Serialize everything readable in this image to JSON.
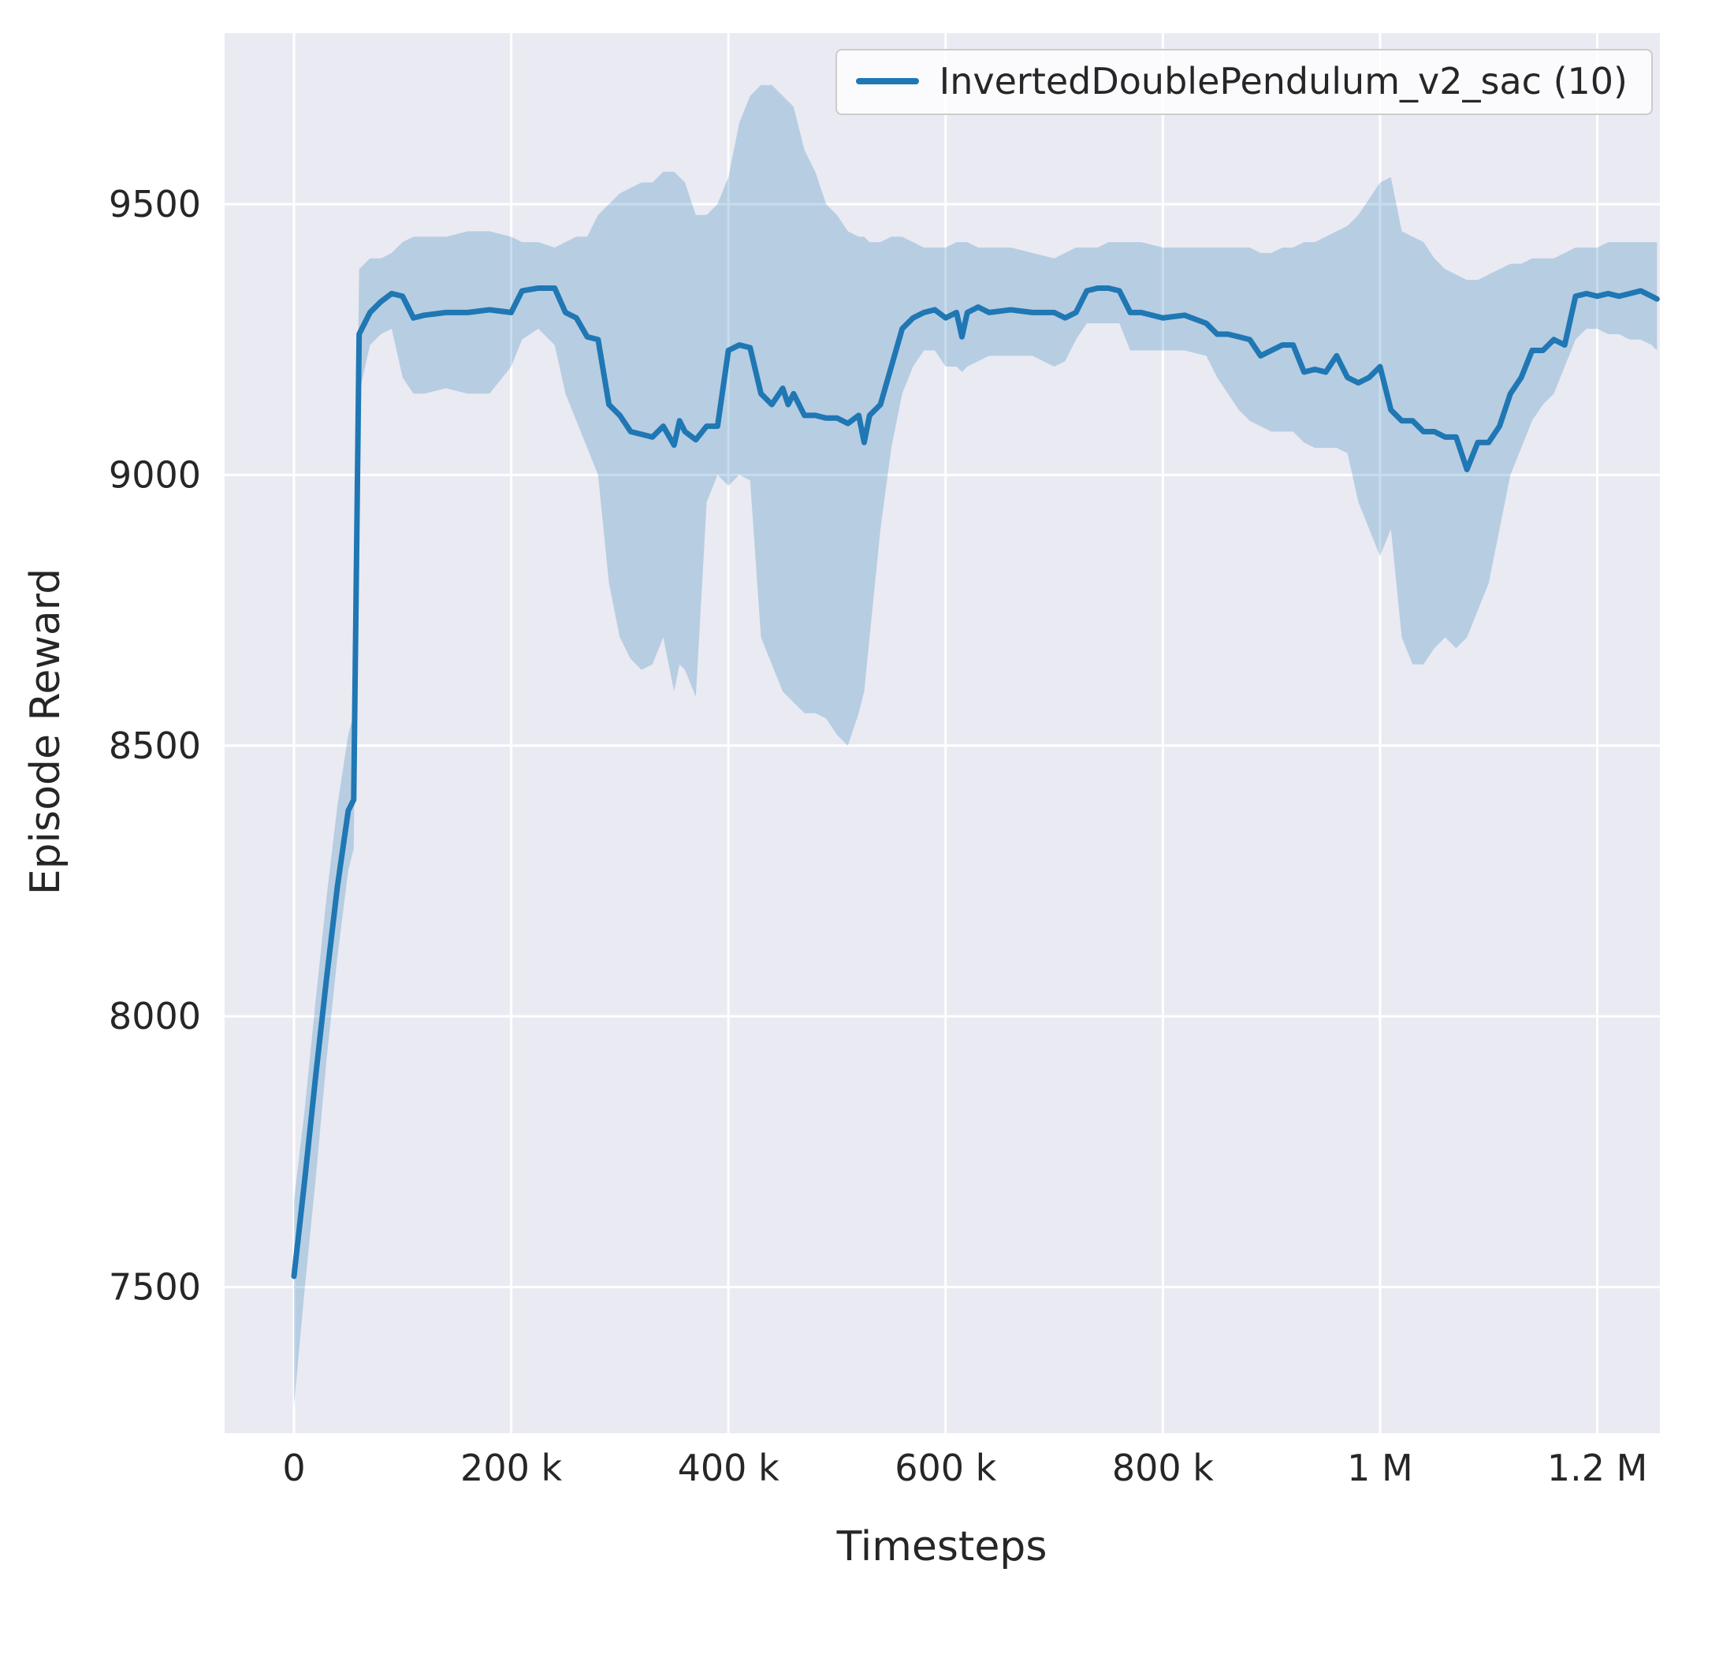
{
  "chart_data": {
    "type": "line",
    "title": "",
    "xlabel": "Timesteps",
    "ylabel": "Episode Reward",
    "grid": true,
    "legend_position": "upper right",
    "background": "#eaeaf2",
    "grid_color": "#ffffff",
    "line_color": "#1f77b4",
    "band_opacity": 0.25,
    "text_color": "#262626",
    "xlim": [
      -63850,
      1257650
    ],
    "ylim": [
      7230,
      9816
    ],
    "xticks": [
      {
        "value": 0,
        "label": "0"
      },
      {
        "value": 200000,
        "label": "200 k"
      },
      {
        "value": 400000,
        "label": "400 k"
      },
      {
        "value": 600000,
        "label": "600 k"
      },
      {
        "value": 800000,
        "label": "800 k"
      },
      {
        "value": 1000000,
        "label": "1 M"
      },
      {
        "value": 1200000,
        "label": "1.2 M"
      }
    ],
    "yticks": [
      {
        "value": 7500,
        "label": "7500"
      },
      {
        "value": 8000,
        "label": "8000"
      },
      {
        "value": 8500,
        "label": "8500"
      },
      {
        "value": 9000,
        "label": "9000"
      },
      {
        "value": 9500,
        "label": "9500"
      }
    ],
    "series": [
      {
        "name": "InvertedDoublePendulum_v2_sac (10)",
        "x": [
          0,
          10000,
          20000,
          30000,
          40000,
          50000,
          55000,
          60000,
          70000,
          80000,
          90000,
          100000,
          110000,
          120000,
          140000,
          160000,
          180000,
          200000,
          210000,
          225000,
          240000,
          250000,
          260000,
          270000,
          280000,
          290000,
          300000,
          310000,
          320000,
          330000,
          340000,
          350000,
          355000,
          360000,
          370000,
          380000,
          390000,
          400000,
          410000,
          420000,
          430000,
          440000,
          450000,
          455000,
          460000,
          470000,
          480000,
          490000,
          500000,
          510000,
          520000,
          525000,
          530000,
          540000,
          550000,
          560000,
          570000,
          580000,
          590000,
          600000,
          610000,
          615000,
          620000,
          630000,
          640000,
          660000,
          680000,
          700000,
          710000,
          720000,
          730000,
          740000,
          750000,
          760000,
          770000,
          780000,
          800000,
          820000,
          840000,
          850000,
          860000,
          870000,
          880000,
          890000,
          900000,
          910000,
          920000,
          930000,
          940000,
          950000,
          960000,
          970000,
          980000,
          990000,
          1000000,
          1010000,
          1020000,
          1030000,
          1040000,
          1050000,
          1060000,
          1070000,
          1080000,
          1090000,
          1100000,
          1110000,
          1120000,
          1130000,
          1140000,
          1150000,
          1160000,
          1170000,
          1180000,
          1190000,
          1200000,
          1210000,
          1220000,
          1230000,
          1240000,
          1250000,
          1255000
        ],
        "mean": [
          7520,
          7700,
          7890,
          8070,
          8240,
          8380,
          8400,
          9260,
          9300,
          9320,
          9335,
          9330,
          9290,
          9295,
          9300,
          9300,
          9305,
          9300,
          9340,
          9345,
          9345,
          9300,
          9290,
          9255,
          9250,
          9130,
          9110,
          9080,
          9075,
          9070,
          9090,
          9055,
          9100,
          9080,
          9065,
          9090,
          9090,
          9230,
          9240,
          9235,
          9150,
          9130,
          9160,
          9130,
          9150,
          9110,
          9110,
          9105,
          9105,
          9095,
          9110,
          9060,
          9110,
          9130,
          9200,
          9270,
          9290,
          9300,
          9305,
          9290,
          9300,
          9255,
          9300,
          9310,
          9300,
          9305,
          9300,
          9300,
          9290,
          9300,
          9340,
          9345,
          9345,
          9340,
          9300,
          9300,
          9290,
          9295,
          9280,
          9260,
          9260,
          9255,
          9250,
          9220,
          9230,
          9240,
          9240,
          9190,
          9195,
          9190,
          9220,
          9180,
          9170,
          9180,
          9200,
          9120,
          9100,
          9100,
          9080,
          9080,
          9070,
          9070,
          9010,
          9060,
          9060,
          9090,
          9150,
          9180,
          9230,
          9230,
          9250,
          9240,
          9330,
          9335,
          9330,
          9335,
          9330,
          9335,
          9340,
          9330,
          9325
        ],
        "lower": [
          7280,
          7500,
          7700,
          7920,
          8110,
          8270,
          8310,
          9150,
          9240,
          9260,
          9270,
          9180,
          9150,
          9150,
          9160,
          9150,
          9150,
          9200,
          9250,
          9270,
          9240,
          9150,
          9100,
          9050,
          9000,
          8800,
          8700,
          8660,
          8640,
          8650,
          8700,
          8600,
          8650,
          8640,
          8590,
          8950,
          9000,
          8980,
          9000,
          8990,
          8700,
          8650,
          8600,
          8590,
          8580,
          8560,
          8560,
          8550,
          8520,
          8500,
          8560,
          8600,
          8700,
          8900,
          9050,
          9150,
          9200,
          9230,
          9230,
          9200,
          9200,
          9190,
          9200,
          9210,
          9220,
          9220,
          9220,
          9200,
          9210,
          9250,
          9280,
          9280,
          9280,
          9280,
          9230,
          9230,
          9230,
          9230,
          9220,
          9180,
          9150,
          9120,
          9100,
          9090,
          9080,
          9080,
          9080,
          9060,
          9050,
          9050,
          9050,
          9040,
          8950,
          8900,
          8850,
          8900,
          8700,
          8650,
          8650,
          8680,
          8700,
          8680,
          8700,
          8750,
          8800,
          8900,
          9000,
          9050,
          9100,
          9130,
          9150,
          9200,
          9250,
          9270,
          9270,
          9260,
          9260,
          9250,
          9250,
          9240,
          9230
        ],
        "upper": [
          7660,
          7830,
          8030,
          8220,
          8390,
          8520,
          8560,
          9380,
          9400,
          9400,
          9410,
          9430,
          9440,
          9440,
          9440,
          9450,
          9450,
          9440,
          9430,
          9430,
          9420,
          9430,
          9440,
          9440,
          9480,
          9500,
          9520,
          9530,
          9540,
          9540,
          9560,
          9560,
          9550,
          9540,
          9480,
          9480,
          9500,
          9550,
          9650,
          9700,
          9720,
          9720,
          9700,
          9690,
          9680,
          9600,
          9560,
          9500,
          9480,
          9450,
          9440,
          9440,
          9430,
          9430,
          9440,
          9440,
          9430,
          9420,
          9420,
          9420,
          9430,
          9430,
          9430,
          9420,
          9420,
          9420,
          9410,
          9400,
          9410,
          9420,
          9420,
          9420,
          9430,
          9430,
          9430,
          9430,
          9420,
          9420,
          9420,
          9420,
          9420,
          9420,
          9420,
          9410,
          9410,
          9420,
          9420,
          9430,
          9430,
          9440,
          9450,
          9460,
          9480,
          9510,
          9540,
          9550,
          9450,
          9440,
          9430,
          9400,
          9380,
          9370,
          9360,
          9360,
          9370,
          9380,
          9390,
          9390,
          9400,
          9400,
          9400,
          9410,
          9420,
          9420,
          9420,
          9430,
          9430,
          9430,
          9430,
          9430,
          9430
        ]
      }
    ]
  }
}
